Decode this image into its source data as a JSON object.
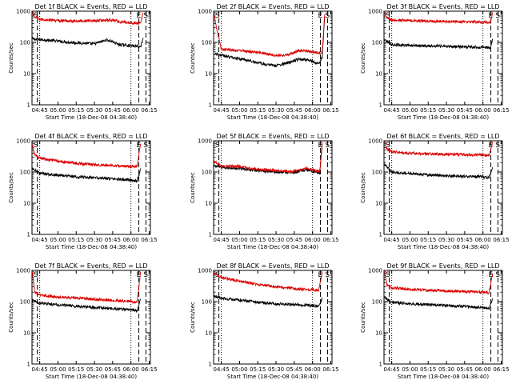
{
  "chart_data": [
    {
      "type": "line",
      "title": "Det 1f BLACK = Events, RED = LLD",
      "xlabel": "Start Time (18-Dec-08 04:38:40)",
      "ylabel": "Counts/sec",
      "yscale": "log",
      "ylim": [
        1,
        1000
      ],
      "xlim": [
        "04:38:40",
        "06:16:00"
      ],
      "x_tick_labels": [
        "04:45",
        "05:00",
        "05:15",
        "05:30",
        "05:45",
        "06:00",
        "06:15"
      ],
      "y_tick_labels": [
        "1",
        "10",
        "100",
        "1000"
      ],
      "markers": [
        {
          "label": "S",
          "x": "04:38:40"
        },
        {
          "label": "E",
          "x": "06:06:30"
        },
        {
          "label": "S",
          "x": "06:12:20"
        }
      ],
      "series": [
        {
          "name": "BLACK",
          "color": "#000000",
          "x": [
            "04:39",
            "04:42",
            "04:50",
            "05:00",
            "05:10",
            "05:20",
            "05:30",
            "05:40",
            "05:45",
            "05:50",
            "05:58",
            "06:05",
            "06:08",
            "06:10"
          ],
          "values": [
            130,
            125,
            120,
            110,
            100,
            95,
            90,
            120,
            105,
            85,
            80,
            75,
            72,
            140
          ]
        },
        {
          "name": "RED",
          "color": "#dd0000",
          "x": [
            "04:39",
            "04:41",
            "04:45",
            "05:00",
            "05:15",
            "05:30",
            "05:45",
            "05:50",
            "06:00",
            "06:05",
            "06:08",
            "06:10"
          ],
          "values": [
            900,
            650,
            550,
            500,
            480,
            500,
            520,
            470,
            430,
            410,
            400,
            900
          ]
        }
      ]
    },
    {
      "type": "line",
      "title": "Det 2f BLACK = Events, RED = LLD",
      "xlabel": "Start Time (18-Dec-08 04:38:40)",
      "ylabel": "Counts/sec",
      "yscale": "log",
      "ylim": [
        1,
        1000
      ],
      "xlim": [
        "04:38:40",
        "06:16:00"
      ],
      "x_tick_labels": [
        "04:45",
        "05:00",
        "05:15",
        "05:30",
        "05:45",
        "06:00",
        "06:15"
      ],
      "y_tick_labels": [
        "1",
        "10",
        "100",
        "1000"
      ],
      "markers": [
        {
          "label": "S",
          "x": "04:38:40"
        },
        {
          "label": "E",
          "x": "06:06:30"
        },
        {
          "label": "S",
          "x": "06:12:20"
        }
      ],
      "series": [
        {
          "name": "BLACK",
          "color": "#000000",
          "x": [
            "04:40",
            "04:43",
            "04:50",
            "05:00",
            "05:10",
            "05:20",
            "05:30",
            "05:40",
            "05:50",
            "06:00",
            "06:05",
            "06:08",
            "06:10"
          ],
          "values": [
            45,
            40,
            35,
            30,
            25,
            20,
            18,
            22,
            30,
            25,
            20,
            35,
            700
          ]
        },
        {
          "name": "RED",
          "color": "#dd0000",
          "x": [
            "04:39",
            "04:41",
            "04:45",
            "05:00",
            "05:10",
            "05:20",
            "05:30",
            "05:40",
            "05:50",
            "06:00",
            "06:05",
            "06:08",
            "06:10"
          ],
          "values": [
            800,
            300,
            60,
            55,
            50,
            45,
            38,
            40,
            55,
            50,
            45,
            50,
            800
          ]
        }
      ]
    },
    {
      "type": "line",
      "title": "Det 3f BLACK = Events, RED = LLD",
      "xlabel": "Start Time (18-Dec-08 04:38:40)",
      "ylabel": "Counts/sec",
      "yscale": "log",
      "ylim": [
        1,
        1000
      ],
      "xlim": [
        "04:38:40",
        "06:16:00"
      ],
      "x_tick_labels": [
        "04:45",
        "05:00",
        "05:15",
        "05:30",
        "05:45",
        "06:00",
        "06:15"
      ],
      "y_tick_labels": [
        "1",
        "10",
        "100",
        "1000"
      ],
      "markers": [
        {
          "label": "S",
          "x": "04:38:40"
        },
        {
          "label": "E",
          "x": "06:06:30"
        },
        {
          "label": "S",
          "x": "06:12:20"
        }
      ],
      "series": [
        {
          "name": "BLACK",
          "color": "#000000",
          "x": [
            "04:39",
            "04:45",
            "05:00",
            "05:15",
            "05:30",
            "05:45",
            "05:55",
            "06:03",
            "06:06",
            "06:08"
          ],
          "values": [
            120,
            85,
            80,
            78,
            75,
            72,
            70,
            70,
            65,
            130
          ]
        },
        {
          "name": "RED",
          "color": "#dd0000",
          "x": [
            "04:39",
            "04:41",
            "04:45",
            "05:00",
            "05:15",
            "05:30",
            "05:45",
            "05:55",
            "06:03",
            "06:06",
            "06:08"
          ],
          "values": [
            950,
            600,
            520,
            500,
            480,
            470,
            460,
            450,
            440,
            430,
            900
          ]
        }
      ]
    },
    {
      "type": "line",
      "title": "Det 4f BLACK = Events, RED = LLD",
      "xlabel": "Start Time (18-Dec-08 04:38:40)",
      "ylabel": "Counts/sec",
      "yscale": "log",
      "ylim": [
        1,
        1000
      ],
      "xlim": [
        "04:38:40",
        "06:16:00"
      ],
      "x_tick_labels": [
        "04:45",
        "05:00",
        "05:15",
        "05:30",
        "05:45",
        "06:00",
        "06:15"
      ],
      "y_tick_labels": [
        "1",
        "10",
        "100",
        "1000"
      ],
      "markers": [
        {
          "label": "S",
          "x": "04:38:40"
        },
        {
          "label": "E",
          "x": "06:06:30"
        },
        {
          "label": "S",
          "x": "06:12:20"
        }
      ],
      "series": [
        {
          "name": "BLACK",
          "color": "#000000",
          "x": [
            "04:39",
            "04:45",
            "05:00",
            "05:15",
            "05:30",
            "05:45",
            "06:00",
            "06:05",
            "06:08"
          ],
          "values": [
            130,
            90,
            80,
            70,
            65,
            60,
            55,
            50,
            130
          ]
        },
        {
          "name": "RED",
          "color": "#dd0000",
          "x": [
            "04:39",
            "04:41",
            "04:45",
            "05:00",
            "05:15",
            "05:30",
            "05:45",
            "06:00",
            "06:05",
            "06:08"
          ],
          "values": [
            700,
            350,
            280,
            220,
            190,
            170,
            160,
            150,
            150,
            800
          ]
        }
      ]
    },
    {
      "type": "line",
      "title": "Det 5f BLACK = Events, RED = LLD",
      "xlabel": "Start Time (18-Dec-08 04:38:40)",
      "ylabel": "Counts/sec",
      "yscale": "log",
      "ylim": [
        1,
        1000
      ],
      "xlim": [
        "04:38:40",
        "06:16:00"
      ],
      "x_tick_labels": [
        "04:45",
        "05:00",
        "05:15",
        "05:30",
        "05:45",
        "06:00",
        "06:15"
      ],
      "y_tick_labels": [
        "1",
        "10",
        "100",
        "1000"
      ],
      "markers": [
        {
          "label": "S",
          "x": "04:38:40"
        },
        {
          "label": "E",
          "x": "06:06:30"
        },
        {
          "label": "S",
          "x": "06:12:20"
        }
      ],
      "series": [
        {
          "name": "BLACK",
          "color": "#000000",
          "x": [
            "04:39",
            "04:45",
            "05:00",
            "05:15",
            "05:30",
            "05:45",
            "05:55",
            "06:03",
            "06:06",
            "06:08"
          ],
          "values": [
            160,
            140,
            130,
            110,
            100,
            95,
            120,
            100,
            95,
            800
          ]
        },
        {
          "name": "RED",
          "color": "#dd0000",
          "x": [
            "04:39",
            "04:45",
            "05:00",
            "05:15",
            "05:30",
            "05:45",
            "05:55",
            "06:03",
            "06:06",
            "06:08"
          ],
          "values": [
            220,
            160,
            150,
            120,
            110,
            105,
            130,
            110,
            105,
            900
          ]
        }
      ]
    },
    {
      "type": "line",
      "title": "Det 6f BLACK = Events, RED = LLD",
      "xlabel": "Start Time (18-Dec-08 04:38:40)",
      "ylabel": "Counts/sec",
      "yscale": "log",
      "ylim": [
        1,
        1000
      ],
      "xlim": [
        "04:38:40",
        "06:16:00"
      ],
      "x_tick_labels": [
        "04:45",
        "05:00",
        "05:15",
        "05:30",
        "05:45",
        "06:00",
        "06:15"
      ],
      "y_tick_labels": [
        "1",
        "10",
        "100",
        "1000"
      ],
      "markers": [
        {
          "label": "S",
          "x": "04:38:40"
        },
        {
          "label": "E",
          "x": "06:06:30"
        },
        {
          "label": "S",
          "x": "06:12:20"
        }
      ],
      "series": [
        {
          "name": "BLACK",
          "color": "#000000",
          "x": [
            "04:39",
            "04:45",
            "05:00",
            "05:15",
            "05:30",
            "05:45",
            "06:00",
            "06:05",
            "06:08"
          ],
          "values": [
            180,
            100,
            90,
            80,
            75,
            72,
            70,
            65,
            140
          ]
        },
        {
          "name": "RED",
          "color": "#dd0000",
          "x": [
            "04:39",
            "04:41",
            "04:45",
            "05:00",
            "05:15",
            "05:30",
            "05:45",
            "06:00",
            "06:05",
            "06:08"
          ],
          "values": [
            950,
            550,
            450,
            400,
            380,
            370,
            360,
            350,
            340,
            900
          ]
        }
      ]
    },
    {
      "type": "line",
      "title": "Det 7f BLACK = Events, RED = LLD",
      "xlabel": "Start Time (18-Dec-08 04:38:40)",
      "ylabel": "Counts/sec",
      "yscale": "log",
      "ylim": [
        1,
        1000
      ],
      "xlim": [
        "04:38:40",
        "06:16:00"
      ],
      "x_tick_labels": [
        "04:45",
        "05:00",
        "05:15",
        "05:30",
        "05:45",
        "06:00",
        "06:15"
      ],
      "y_tick_labels": [
        "1",
        "10",
        "100",
        "1000"
      ],
      "markers": [
        {
          "label": "S",
          "x": "04:38:40"
        },
        {
          "label": "E",
          "x": "06:06:30"
        },
        {
          "label": "S",
          "x": "06:12:20"
        }
      ],
      "series": [
        {
          "name": "BLACK",
          "color": "#000000",
          "x": [
            "04:39",
            "04:45",
            "05:00",
            "05:15",
            "05:30",
            "05:45",
            "06:00",
            "06:05",
            "06:08"
          ],
          "values": [
            110,
            90,
            80,
            70,
            65,
            60,
            55,
            50,
            120
          ]
        },
        {
          "name": "RED",
          "color": "#dd0000",
          "x": [
            "04:39",
            "04:41",
            "04:45",
            "05:00",
            "05:15",
            "05:30",
            "05:45",
            "06:00",
            "06:05",
            "06:08"
          ],
          "values": [
            800,
            200,
            160,
            140,
            130,
            120,
            110,
            100,
            95,
            900
          ]
        }
      ]
    },
    {
      "type": "line",
      "title": "Det 8f BLACK = Events, RED = LLD",
      "xlabel": "Start Time (18-Dec-08 04:38:40)",
      "ylabel": "Counts/sec",
      "yscale": "log",
      "ylim": [
        1,
        1000
      ],
      "xlim": [
        "04:38:40",
        "06:16:00"
      ],
      "x_tick_labels": [
        "04:45",
        "05:00",
        "05:15",
        "05:30",
        "05:45",
        "06:00",
        "06:15"
      ],
      "y_tick_labels": [
        "1",
        "10",
        "100",
        "1000"
      ],
      "markers": [
        {
          "label": "S",
          "x": "04:38:40"
        },
        {
          "label": "E",
          "x": "06:06:30"
        },
        {
          "label": "S",
          "x": "06:12:20"
        }
      ],
      "series": [
        {
          "name": "BLACK",
          "color": "#000000",
          "x": [
            "04:39",
            "04:45",
            "05:00",
            "05:15",
            "05:30",
            "05:45",
            "06:00",
            "06:05",
            "06:08"
          ],
          "values": [
            150,
            130,
            110,
            95,
            85,
            80,
            75,
            70,
            130
          ]
        },
        {
          "name": "RED",
          "color": "#dd0000",
          "x": [
            "04:39",
            "04:45",
            "05:00",
            "05:15",
            "05:30",
            "05:45",
            "06:00",
            "06:05",
            "06:08"
          ],
          "values": [
            800,
            600,
            450,
            350,
            300,
            260,
            240,
            230,
            900
          ]
        }
      ]
    },
    {
      "type": "line",
      "title": "Det 9f BLACK = Events, RED = LLD",
      "xlabel": "Start Time (18-Dec-08 04:38:40)",
      "ylabel": "Counts/sec",
      "yscale": "log",
      "ylim": [
        1,
        1000
      ],
      "xlim": [
        "04:38:40",
        "06:16:00"
      ],
      "x_tick_labels": [
        "04:45",
        "05:00",
        "05:15",
        "05:30",
        "05:45",
        "06:00",
        "06:15"
      ],
      "y_tick_labels": [
        "1",
        "10",
        "100",
        "1000"
      ],
      "markers": [
        {
          "label": "S",
          "x": "04:38:40"
        },
        {
          "label": "E",
          "x": "06:06:30"
        },
        {
          "label": "S",
          "x": "06:12:20"
        }
      ],
      "series": [
        {
          "name": "BLACK",
          "color": "#000000",
          "x": [
            "04:39",
            "04:45",
            "05:00",
            "05:15",
            "05:30",
            "05:45",
            "06:00",
            "06:05",
            "06:08"
          ],
          "values": [
            140,
            95,
            85,
            80,
            75,
            70,
            65,
            60,
            120
          ]
        },
        {
          "name": "RED",
          "color": "#dd0000",
          "x": [
            "04:39",
            "04:41",
            "04:45",
            "05:00",
            "05:15",
            "05:30",
            "05:45",
            "06:00",
            "06:05",
            "06:08"
          ],
          "values": [
            900,
            350,
            280,
            250,
            230,
            220,
            210,
            200,
            190,
            800
          ]
        }
      ]
    }
  ]
}
